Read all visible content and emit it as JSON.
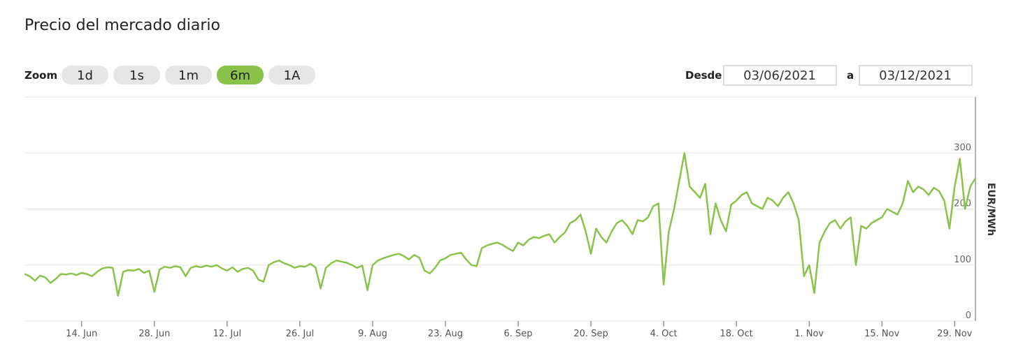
{
  "chart_data": {
    "type": "line",
    "title": "Precio del mercado diario",
    "zoom_label": "Zoom",
    "zoom_buttons": [
      "1d",
      "1s",
      "1m",
      "6m",
      "1A"
    ],
    "zoom_selected": "6m",
    "from_label": "Desde",
    "from_date": "03/06/2021",
    "to_label": "a",
    "to_date": "03/12/2021",
    "y_axis_label": "EUR/MWh",
    "ylim": [
      0,
      400
    ],
    "yticks": [
      0,
      100,
      200,
      300
    ],
    "grid": true,
    "categories": [
      null,
      null,
      null,
      null,
      null,
      null,
      null,
      null,
      null,
      null,
      null,
      "14. Jun",
      null,
      null,
      null,
      null,
      null,
      null,
      null,
      null,
      null,
      null,
      null,
      null,
      null,
      "28. Jun",
      null,
      null,
      null,
      null,
      null,
      null,
      null,
      null,
      null,
      null,
      null,
      null,
      null,
      "12. Jul",
      null,
      null,
      null,
      null,
      null,
      null,
      null,
      null,
      null,
      null,
      null,
      null,
      null,
      "26. Jul",
      null,
      null,
      null,
      null,
      null,
      null,
      null,
      null,
      null,
      null,
      null,
      null,
      null,
      "9. Aug",
      null,
      null,
      null,
      null,
      null,
      null,
      null,
      null,
      null,
      null,
      null,
      null,
      null,
      "23. Aug",
      null,
      null,
      null,
      null,
      null,
      null,
      null,
      null,
      null,
      null,
      null,
      null,
      null,
      "6. Sep",
      null,
      null,
      null,
      null,
      null,
      null,
      null,
      null,
      null,
      null,
      null,
      null,
      null,
      "20. Sep",
      null,
      null,
      null,
      null,
      null,
      null,
      null,
      null,
      null,
      null,
      null,
      null,
      null,
      "4. Oct",
      null,
      null,
      null,
      null,
      null,
      null,
      null,
      null,
      null,
      null,
      null,
      null,
      null,
      "18. Oct",
      null,
      null,
      null,
      null,
      null,
      null,
      null,
      null,
      null,
      null,
      null,
      null,
      null,
      "1. Nov",
      null,
      null,
      null,
      null,
      null,
      null,
      null,
      null,
      null,
      null,
      null,
      null,
      null,
      "15. Nov",
      null,
      null,
      null,
      null,
      null,
      null,
      null,
      null,
      null,
      null,
      null,
      null,
      null,
      "29. Nov",
      null,
      null,
      null,
      null
    ],
    "series": [
      {
        "color": "#8bc34a",
        "values": [
          84,
          80,
          72,
          81,
          78,
          68,
          75,
          84,
          83,
          85,
          82,
          86,
          84,
          80,
          88,
          94,
          96,
          95,
          45,
          88,
          91,
          90,
          93,
          86,
          90,
          52,
          92,
          97,
          95,
          98,
          96,
          80,
          95,
          98,
          96,
          99,
          97,
          100,
          94,
          90,
          96,
          88,
          93,
          95,
          90,
          74,
          70,
          100,
          105,
          108,
          103,
          100,
          95,
          98,
          97,
          102,
          96,
          58,
          95,
          103,
          108,
          106,
          104,
          100,
          95,
          99,
          55,
          100,
          108,
          112,
          115,
          118,
          120,
          116,
          110,
          118,
          113,
          90,
          85,
          95,
          108,
          112,
          118,
          120,
          122,
          110,
          100,
          98,
          130,
          135,
          138,
          140,
          136,
          130,
          125,
          140,
          135,
          145,
          150,
          148,
          152,
          155,
          140,
          150,
          158,
          175,
          180,
          190,
          160,
          120,
          165,
          150,
          140,
          160,
          175,
          180,
          170,
          155,
          180,
          178,
          185,
          205,
          210,
          65,
          160,
          200,
          250,
          300,
          240,
          230,
          220,
          245,
          155,
          210,
          180,
          160,
          208,
          215,
          225,
          230,
          210,
          205,
          200,
          220,
          215,
          205,
          220,
          230,
          210,
          180,
          80,
          100,
          50,
          140,
          160,
          175,
          180,
          165,
          178,
          185,
          100,
          170,
          165,
          175,
          180,
          185,
          200,
          195,
          190,
          210,
          250,
          230,
          240,
          235,
          225,
          238,
          232,
          215,
          165,
          240,
          290,
          200,
          240,
          255
        ]
      }
    ]
  }
}
